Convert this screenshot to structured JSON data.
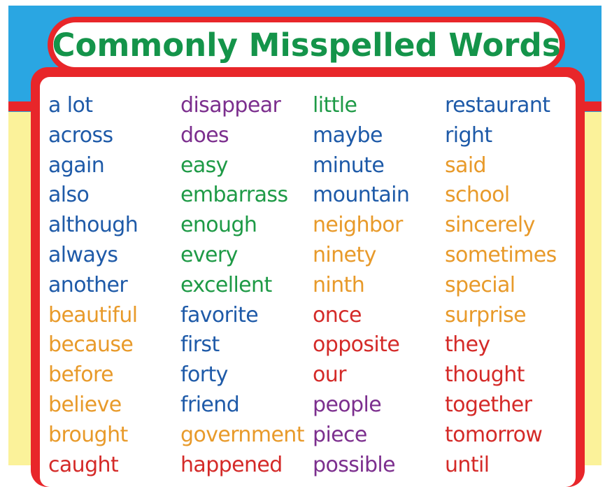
{
  "colors": {
    "sky": "#2aa6e2",
    "red": "#e8262a",
    "yellow": "#fbf29a",
    "title_green": "#14944a",
    "blue": "#1e5aa8",
    "orange": "#e89a2a",
    "purple": "#7c2f8e",
    "green": "#1e9a46",
    "red_text": "#d42a28"
  },
  "title": "Commonly Misspelled Words",
  "columns": [
    [
      {
        "text": "a lot",
        "color": "blue"
      },
      {
        "text": "across",
        "color": "blue"
      },
      {
        "text": "again",
        "color": "blue"
      },
      {
        "text": "also",
        "color": "blue"
      },
      {
        "text": "although",
        "color": "blue"
      },
      {
        "text": "always",
        "color": "blue"
      },
      {
        "text": "another",
        "color": "blue"
      },
      {
        "text": "beautiful",
        "color": "orange"
      },
      {
        "text": "because",
        "color": "orange"
      },
      {
        "text": "before",
        "color": "orange"
      },
      {
        "text": "believe",
        "color": "orange"
      },
      {
        "text": "brought",
        "color": "orange"
      },
      {
        "text": "caught",
        "color": "red_text"
      }
    ],
    [
      {
        "text": "disappear",
        "color": "purple"
      },
      {
        "text": "does",
        "color": "purple"
      },
      {
        "text": "easy",
        "color": "green"
      },
      {
        "text": "embarrass",
        "color": "green"
      },
      {
        "text": "enough",
        "color": "green"
      },
      {
        "text": "every",
        "color": "green"
      },
      {
        "text": "excellent",
        "color": "green"
      },
      {
        "text": "favorite",
        "color": "blue"
      },
      {
        "text": "first",
        "color": "blue"
      },
      {
        "text": "forty",
        "color": "blue"
      },
      {
        "text": "friend",
        "color": "blue"
      },
      {
        "text": "government",
        "color": "orange"
      },
      {
        "text": "happened",
        "color": "red_text"
      }
    ],
    [
      {
        "text": "little",
        "color": "green"
      },
      {
        "text": "maybe",
        "color": "blue"
      },
      {
        "text": "minute",
        "color": "blue"
      },
      {
        "text": "mountain",
        "color": "blue"
      },
      {
        "text": "neighbor",
        "color": "orange"
      },
      {
        "text": "ninety",
        "color": "orange"
      },
      {
        "text": "ninth",
        "color": "orange"
      },
      {
        "text": "once",
        "color": "red_text"
      },
      {
        "text": "opposite",
        "color": "red_text"
      },
      {
        "text": "our",
        "color": "red_text"
      },
      {
        "text": "people",
        "color": "purple"
      },
      {
        "text": "piece",
        "color": "purple"
      },
      {
        "text": "possible",
        "color": "purple"
      }
    ],
    [
      {
        "text": "restaurant",
        "color": "blue"
      },
      {
        "text": "right",
        "color": "blue"
      },
      {
        "text": "said",
        "color": "orange"
      },
      {
        "text": "school",
        "color": "orange"
      },
      {
        "text": "sincerely",
        "color": "orange"
      },
      {
        "text": "sometimes",
        "color": "orange"
      },
      {
        "text": "special",
        "color": "orange"
      },
      {
        "text": "surprise",
        "color": "orange"
      },
      {
        "text": "they",
        "color": "red_text"
      },
      {
        "text": "thought",
        "color": "red_text"
      },
      {
        "text": "together",
        "color": "red_text"
      },
      {
        "text": "tomorrow",
        "color": "red_text"
      },
      {
        "text": "until",
        "color": "red_text"
      }
    ]
  ]
}
